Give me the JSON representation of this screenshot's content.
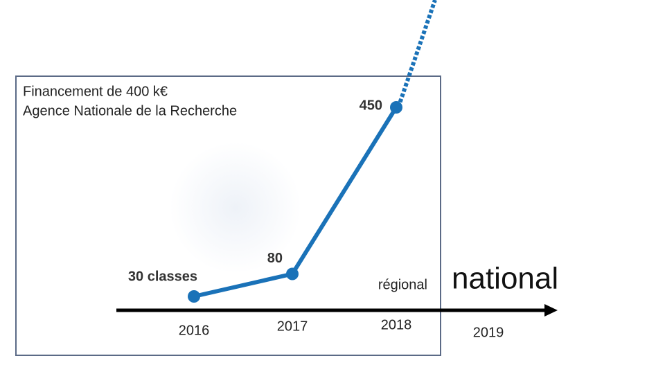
{
  "chart_data": {
    "type": "line",
    "title_lines": [
      "Financement de 400 k€",
      "Agence Nationale de la Recherche"
    ],
    "categories": [
      "2016",
      "2017",
      "2018",
      "2019"
    ],
    "values": [
      30,
      80,
      450,
      null
    ],
    "value_labels": [
      "30 classes",
      "80",
      "450",
      null
    ],
    "color": "#1a72b8",
    "annotations": [
      "régional",
      "national"
    ]
  }
}
